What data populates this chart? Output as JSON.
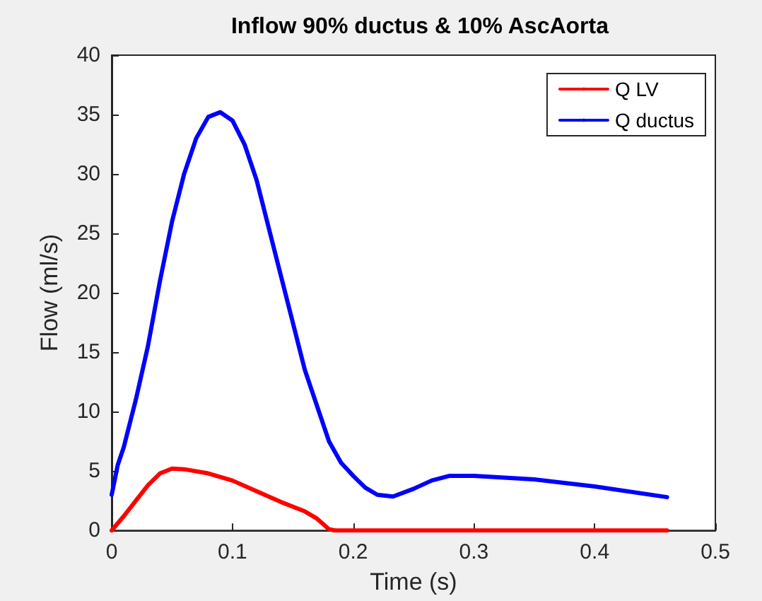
{
  "chart_data": {
    "type": "line",
    "title": "Inflow 90% ductus & 10% AscAorta",
    "xlabel": "Time (s)",
    "ylabel": "Flow (ml/s)",
    "xlim": [
      0,
      0.5
    ],
    "xticks": [
      0,
      0.1,
      0.2,
      0.3,
      0.4,
      0.5
    ],
    "ylim": [
      0,
      40
    ],
    "yticks": [
      0,
      5,
      10,
      15,
      20,
      25,
      30,
      35,
      40
    ],
    "grid": false,
    "legend": "top right",
    "marker": "none",
    "line_style": "solid",
    "series": [
      {
        "name": "Q LV",
        "color": "#ff0000",
        "x": [
          0,
          0.01,
          0.02,
          0.03,
          0.04,
          0.05,
          0.06,
          0.08,
          0.1,
          0.12,
          0.14,
          0.16,
          0.17,
          0.18,
          0.185,
          0.3,
          0.46
        ],
        "values": [
          0,
          1.2,
          2.5,
          3.8,
          4.8,
          5.2,
          5.15,
          4.8,
          4.2,
          3.3,
          2.4,
          1.6,
          1.0,
          0.1,
          0,
          0,
          0
        ]
      },
      {
        "name": "Q ductus",
        "color": "#0000ff",
        "x": [
          0,
          0.005,
          0.01,
          0.02,
          0.03,
          0.04,
          0.05,
          0.06,
          0.07,
          0.08,
          0.09,
          0.1,
          0.11,
          0.12,
          0.13,
          0.14,
          0.15,
          0.16,
          0.17,
          0.18,
          0.19,
          0.2,
          0.21,
          0.22,
          0.233,
          0.25,
          0.265,
          0.28,
          0.3,
          0.35,
          0.4,
          0.46
        ],
        "values": [
          3,
          5.5,
          7,
          11,
          15.5,
          21,
          26,
          30,
          33,
          34.8,
          35.2,
          34.5,
          32.5,
          29.5,
          25.5,
          21.5,
          17.5,
          13.5,
          10.5,
          7.5,
          5.7,
          4.6,
          3.6,
          3.0,
          2.85,
          3.5,
          4.2,
          4.6,
          4.6,
          4.3,
          3.7,
          2.8
        ]
      }
    ]
  }
}
